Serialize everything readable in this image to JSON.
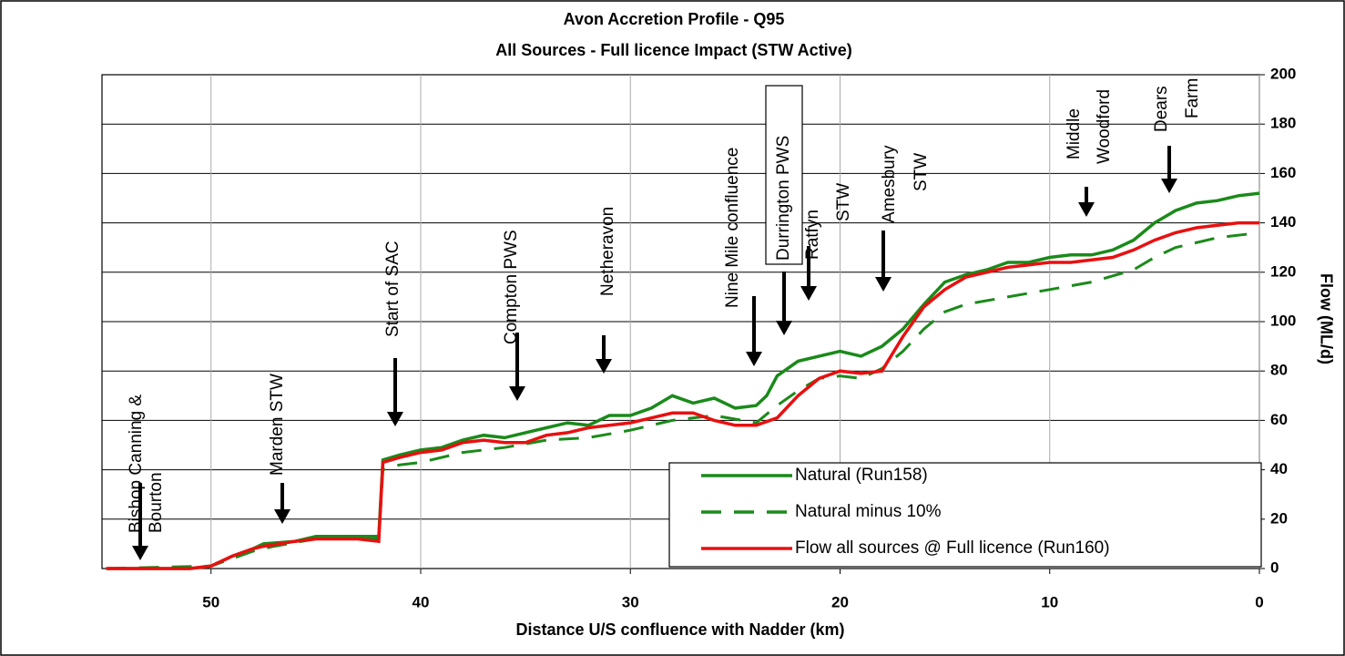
{
  "chart_data": {
    "type": "line",
    "title": "Avon Accretion Profile - Q95",
    "subtitle": "All Sources - Full licence Impact (STW Active)",
    "x_label": "Distance U/S confluence with Nadder (km)",
    "y_label": "Flow (ML/d)",
    "xlim": [
      55.2,
      0
    ],
    "xticks": [
      50,
      40,
      30,
      20,
      10,
      0
    ],
    "ylim": [
      0,
      200
    ],
    "yticks": [
      0,
      20,
      40,
      60,
      80,
      100,
      120,
      140,
      160,
      180,
      200
    ],
    "grid": true,
    "legend": "lower right",
    "series": [
      {
        "name": "Natural (Run158)",
        "color": "#1a8a1a",
        "style": "solid",
        "x": [
          55,
          51,
          50,
          49,
          48,
          47.5,
          46,
          45,
          43,
          42,
          41.8,
          41,
          40,
          39,
          38,
          37,
          36,
          35,
          34,
          33,
          32,
          31,
          30,
          29,
          28,
          27,
          26,
          25,
          24,
          23.5,
          23,
          22,
          21,
          20,
          19,
          18,
          17,
          16,
          15,
          14,
          13,
          12,
          11,
          10,
          9,
          8,
          7,
          6,
          5,
          4,
          3,
          2,
          1,
          0
        ],
        "values": [
          0,
          0,
          1,
          5,
          8,
          10,
          11,
          13,
          13,
          13,
          44,
          46,
          48,
          49,
          52,
          54,
          53,
          55,
          57,
          59,
          58,
          62,
          62,
          65,
          70,
          67,
          69,
          65,
          66,
          70,
          78,
          84,
          86,
          88,
          86,
          90,
          97,
          107,
          116,
          119,
          121,
          124,
          124,
          126,
          127,
          127,
          129,
          133,
          140,
          145,
          148,
          149,
          151,
          152
        ]
      },
      {
        "name": "Natural minus 10%",
        "color": "#1a8a1a",
        "style": "dashed",
        "x": [
          55,
          50,
          49,
          48,
          47,
          45,
          42,
          41.8,
          41,
          40,
          38,
          36,
          34,
          32,
          30,
          28,
          26,
          24,
          23,
          22,
          21,
          20,
          19,
          18,
          17,
          16,
          15,
          14,
          12,
          10,
          8,
          6,
          5,
          4,
          2,
          0
        ],
        "values": [
          0,
          1,
          4,
          7,
          9,
          12,
          12,
          40,
          42,
          43,
          47,
          49,
          52,
          53,
          56,
          60,
          62,
          59,
          66,
          72,
          77,
          78,
          77,
          81,
          88,
          97,
          104,
          107,
          110,
          113,
          116,
          121,
          126,
          130,
          134,
          136
        ]
      },
      {
        "name": "Flow  all sources @ Full licence (Run160)",
        "color": "#e81010",
        "style": "solid",
        "x": [
          55,
          51,
          50,
          49,
          48,
          47.5,
          46,
          45,
          43,
          42,
          41.8,
          41,
          40,
          39,
          38,
          37,
          36,
          35,
          34,
          33,
          32,
          31,
          30,
          29,
          28,
          27,
          26,
          25,
          24,
          23,
          22,
          21,
          20,
          19,
          18,
          17,
          16,
          15,
          14,
          13,
          12,
          11,
          10,
          9,
          8,
          7,
          6,
          5,
          4,
          3,
          2,
          1,
          0
        ],
        "values": [
          0,
          0,
          1,
          5,
          8,
          9,
          11,
          12,
          12,
          11,
          43,
          45,
          47,
          48,
          51,
          52,
          51,
          51,
          54,
          55,
          57,
          58,
          59,
          61,
          63,
          63,
          60,
          58,
          58,
          61,
          70,
          77,
          80,
          79,
          80,
          94,
          106,
          113,
          118,
          120,
          122,
          123,
          124,
          124,
          125,
          126,
          129,
          133,
          136,
          138,
          139,
          140,
          140
        ]
      }
    ],
    "annotations": [
      [
        "Bishop Canning &",
        "Bourton"
      ],
      [
        "Marden STW"
      ],
      [
        "Start of SAC"
      ],
      [
        "Compton PWS"
      ],
      [
        "Netheravon"
      ],
      [
        "Nine Mile confluence"
      ],
      [
        "Durrington PWS"
      ],
      [
        "Ratfyn",
        "STW"
      ],
      [
        "Amesbury",
        "STW"
      ],
      [
        "Middle",
        "Woodford"
      ],
      [
        "Dears",
        "Farm"
      ]
    ]
  }
}
